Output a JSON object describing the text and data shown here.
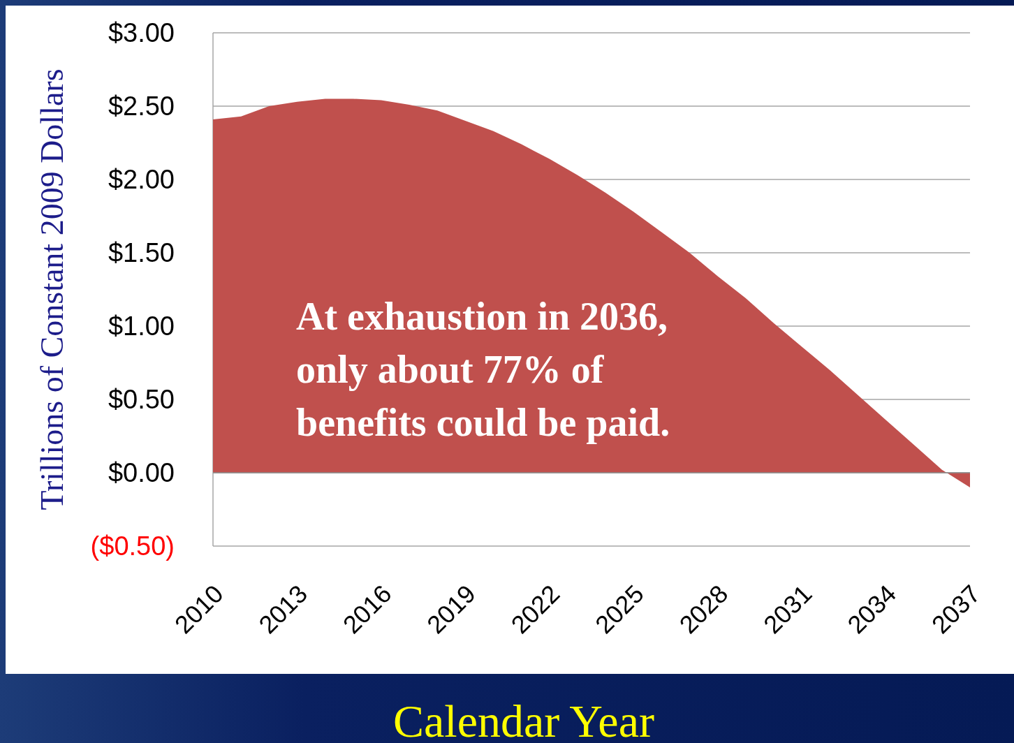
{
  "chart_data": {
    "type": "area",
    "xlabel": "Calendar Year",
    "ylabel": "Trillions of Constant 2009 Dollars",
    "annotations": [
      "At exhaustion in 2036, only about 77% of benefits could be paid."
    ],
    "x": [
      2010,
      2011,
      2012,
      2013,
      2014,
      2015,
      2016,
      2017,
      2018,
      2019,
      2020,
      2021,
      2022,
      2023,
      2024,
      2025,
      2026,
      2027,
      2028,
      2029,
      2030,
      2031,
      2032,
      2033,
      2034,
      2035,
      2036,
      2037
    ],
    "series": [
      {
        "color": "#c0504d",
        "values": [
          2.41,
          2.43,
          2.5,
          2.53,
          2.55,
          2.55,
          2.54,
          2.51,
          2.47,
          2.4,
          2.33,
          2.24,
          2.14,
          2.03,
          1.91,
          1.78,
          1.64,
          1.5,
          1.34,
          1.19,
          1.02,
          0.86,
          0.7,
          0.53,
          0.36,
          0.19,
          0.02,
          -0.1
        ]
      }
    ],
    "xlim": [
      2010,
      2037
    ],
    "xticks": [
      2010,
      2013,
      2016,
      2019,
      2022,
      2025,
      2028,
      2031,
      2034,
      2037
    ],
    "ylim": [
      -0.5,
      3
    ],
    "yticks": [
      {
        "value": -0.5,
        "label": "($0.50)"
      },
      {
        "value": 0,
        "label": "$0.00"
      },
      {
        "value": 0.5,
        "label": "$0.50"
      },
      {
        "value": 1,
        "label": "$1.00"
      },
      {
        "value": 1.5,
        "label": "$1.50"
      },
      {
        "value": 2,
        "label": "$2.00"
      },
      {
        "value": 2.5,
        "label": "$2.50"
      },
      {
        "value": 3,
        "label": "$3.00"
      }
    ],
    "grid": "y"
  }
}
